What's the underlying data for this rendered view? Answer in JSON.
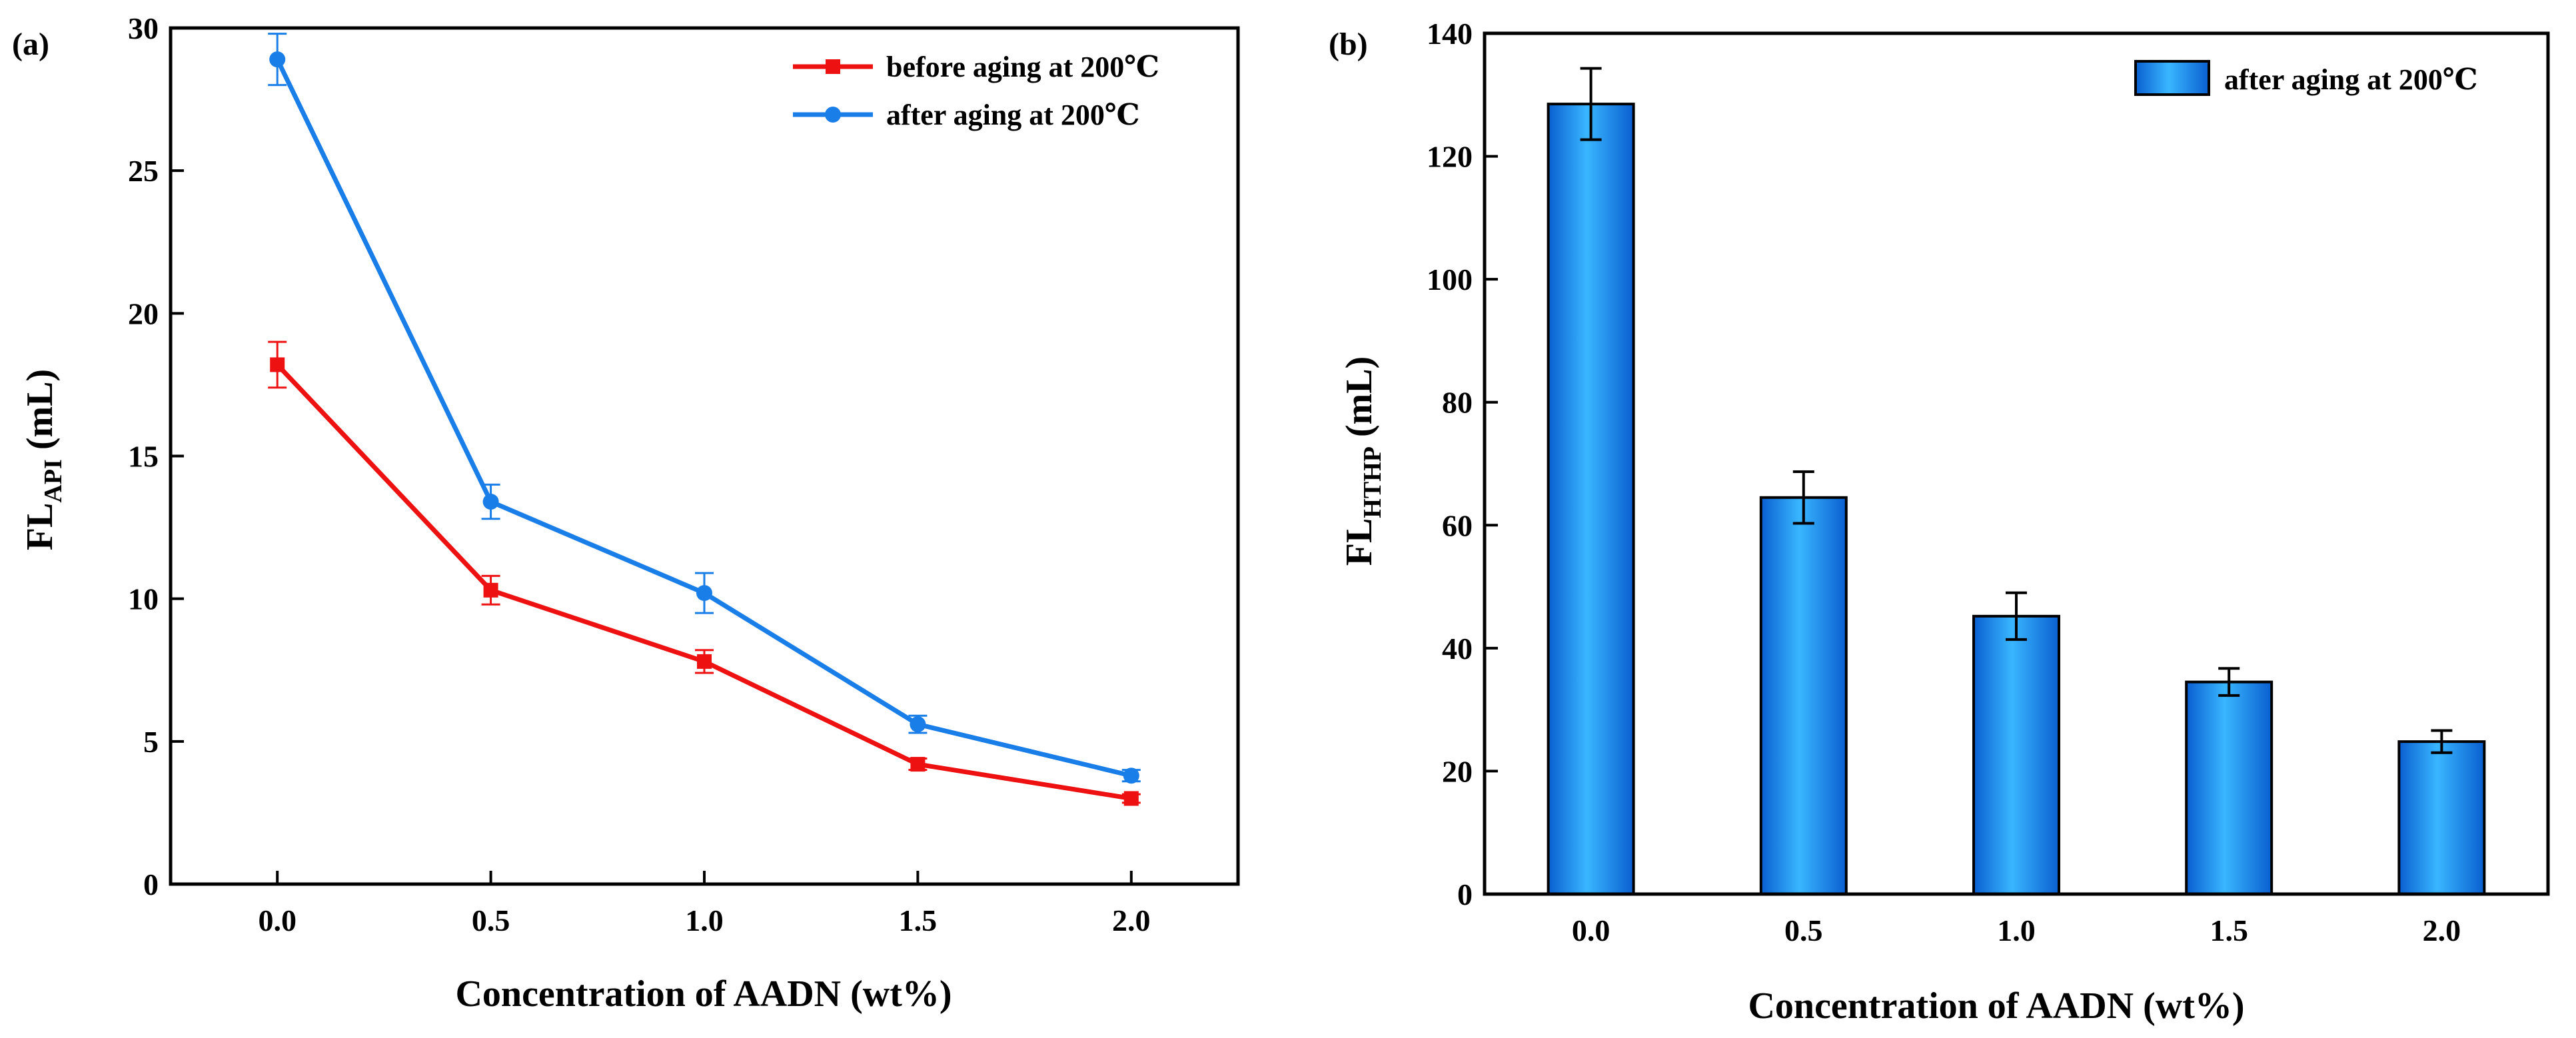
{
  "chart_data": [
    {
      "type": "line",
      "panel_label": "(a)",
      "xlabel": "Concentration of AADN (wt%)",
      "ylabel_main": "FL",
      "ylabel_sub": "API",
      "ylabel_unit": " (mL)",
      "categories": [
        "0.0",
        "0.5",
        "1.0",
        "1.5",
        "2.0"
      ],
      "x": [
        0.0,
        0.5,
        1.0,
        1.5,
        2.0
      ],
      "xlim": [
        -0.25,
        2.25
      ],
      "ylim": [
        0,
        30
      ],
      "yticks": [
        "0",
        "5",
        "10",
        "15",
        "20",
        "25",
        "30"
      ],
      "ytick_values": [
        0,
        5,
        10,
        15,
        20,
        25,
        30
      ],
      "legend_position": "top-right",
      "series": [
        {
          "name": "before aging at 200℃",
          "color": "#ee1111",
          "marker": "square",
          "values": [
            18.2,
            10.3,
            7.8,
            4.2,
            3.0
          ],
          "errors": [
            0.8,
            0.5,
            0.4,
            0.2,
            0.15
          ]
        },
        {
          "name": "after aging at 200℃",
          "color": "#1a7ee8",
          "marker": "circle",
          "values": [
            28.9,
            13.4,
            10.2,
            5.6,
            3.8
          ],
          "errors": [
            0.9,
            0.6,
            0.7,
            0.3,
            0.2
          ]
        }
      ]
    },
    {
      "type": "bar",
      "panel_label": "(b)",
      "xlabel": "Concentration of AADN (wt%)",
      "ylabel_main": "FL",
      "ylabel_sub": "HTHP",
      "ylabel_unit": " (mL)",
      "categories": [
        "0.0",
        "0.5",
        "1.0",
        "1.5",
        "2.0"
      ],
      "ylim": [
        0,
        140
      ],
      "yticks": [
        "0",
        "20",
        "40",
        "60",
        "80",
        "100",
        "120",
        "140"
      ],
      "ytick_values": [
        0,
        20,
        40,
        60,
        80,
        100,
        120,
        140
      ],
      "legend_position": "top-right",
      "series": [
        {
          "name": "after aging at 200℃",
          "color": "#1a8cf0",
          "values": [
            128.5,
            64.5,
            45.2,
            34.5,
            24.8
          ],
          "errors": [
            5.8,
            4.2,
            3.8,
            2.2,
            1.8
          ]
        }
      ]
    }
  ]
}
